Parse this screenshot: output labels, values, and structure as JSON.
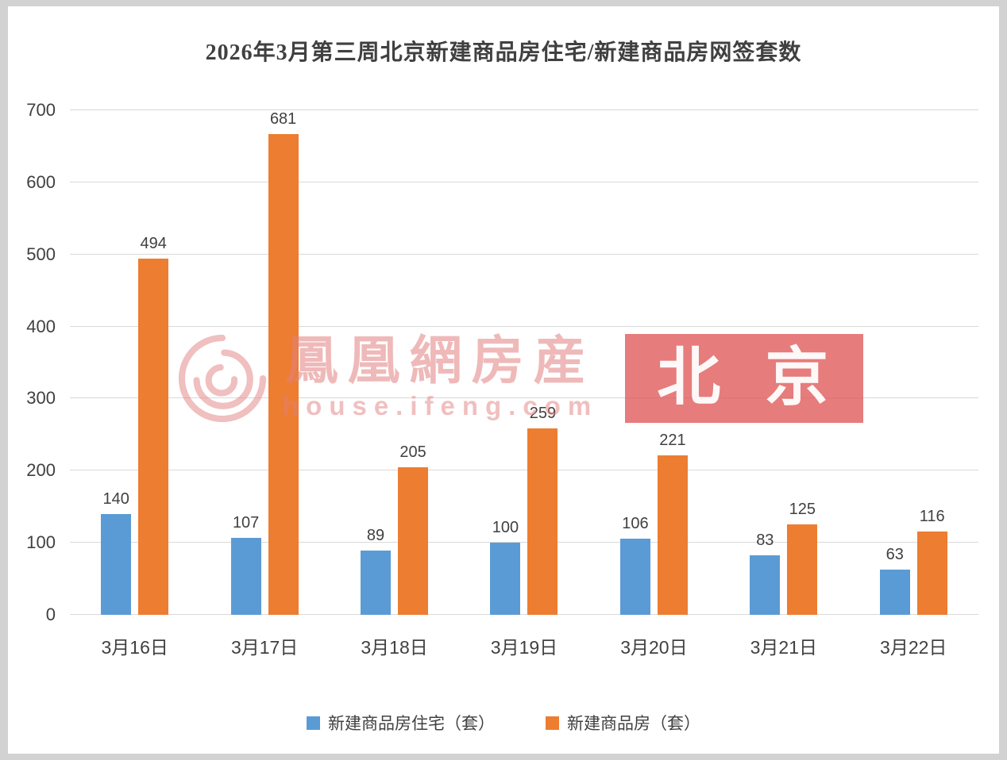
{
  "chart_data": {
    "type": "bar",
    "title": "2026年3月第三周北京新建商品房住宅/新建商品房网签套数",
    "categories": [
      "3月16日",
      "3月17日",
      "3月18日",
      "3月19日",
      "3月20日",
      "3月21日",
      "3月22日"
    ],
    "series": [
      {
        "name": "新建商品房住宅（套）",
        "color": "#5b9bd5",
        "values": [
          140,
          107,
          89,
          100,
          106,
          83,
          63
        ]
      },
      {
        "name": "新建商品房（套）",
        "color": "#ed7d31",
        "values": [
          494,
          681,
          205,
          259,
          221,
          125,
          116
        ]
      }
    ],
    "ylim": [
      0,
      700
    ],
    "yticks": [
      0,
      100,
      200,
      300,
      400,
      500,
      600,
      700
    ],
    "grid": true,
    "legend_position": "bottom",
    "gridline_color": "#d9d9d9",
    "label_color": "#404040"
  },
  "watermark": {
    "brand": "鳳凰網房産",
    "domain": "house.ifeng.com",
    "badge": "北 京"
  }
}
